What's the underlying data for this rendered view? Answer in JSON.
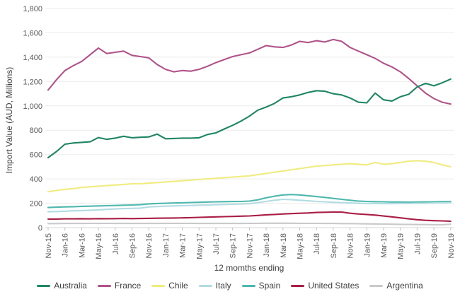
{
  "chart_data": {
    "type": "line",
    "title": "",
    "xlabel": "12 momths ending",
    "ylabel": "Import Value (AUD, Millions)",
    "ylim": [
      0,
      1800
    ],
    "ytick_step": 200,
    "grid": "horizontal",
    "legend_position": "bottom",
    "y_ticklabels": [
      "0",
      "200",
      "400",
      "600",
      "800",
      "1,000",
      "1,200",
      "1,400",
      "1,600",
      "1,800"
    ],
    "x": [
      "Nov-15",
      "Dec-15",
      "Jan-16",
      "Feb-16",
      "Mar-16",
      "Apr-16",
      "May-16",
      "Jun-16",
      "Jul-16",
      "Aug-16",
      "Sep-16",
      "Oct-16",
      "Nov-16",
      "Dec-16",
      "Jan-17",
      "Feb-17",
      "Mar-17",
      "Apr-17",
      "May-17",
      "Jun-17",
      "Jul-17",
      "Aug-17",
      "Sep-17",
      "Oct-17",
      "Nov-17",
      "Dec-17",
      "Jan-18",
      "Feb-18",
      "Mar-18",
      "Apr-18",
      "May-18",
      "Jun-18",
      "Jul-18",
      "Aug-18",
      "Sep-18",
      "Oct-18",
      "Nov-18",
      "Dec-18",
      "Jan-19",
      "Feb-19",
      "Mar-19",
      "Apr-19",
      "May-19",
      "Jun-19",
      "Jul-19",
      "Aug-19",
      "Sep-19",
      "Oct-19",
      "Nov-19"
    ],
    "x_ticklabels": [
      "Nov-15",
      "Jan-16",
      "Mar-16",
      "May-16",
      "Jul-16",
      "Sep-16",
      "Nov-16",
      "Jan-17",
      "Mar-17",
      "May-17",
      "Jul-17",
      "Sep-17",
      "Nov-17",
      "Jan-18",
      "Mar-18",
      "May-18",
      "Jul-18",
      "Sep-18",
      "Nov-18",
      "Jan-19",
      "Mar-19",
      "May-19",
      "Jul-19",
      "Sep-19",
      "Nov-19"
    ],
    "series": [
      {
        "name": "Australia",
        "color": "#1e8565",
        "values": [
          575,
          625,
          685,
          695,
          700,
          705,
          740,
          725,
          735,
          750,
          738,
          742,
          745,
          768,
          730,
          732,
          735,
          735,
          738,
          765,
          778,
          810,
          840,
          875,
          915,
          965,
          990,
          1020,
          1065,
          1075,
          1090,
          1110,
          1125,
          1120,
          1100,
          1090,
          1065,
          1030,
          1025,
          1105,
          1050,
          1040,
          1075,
          1095,
          1155,
          1185,
          1165,
          1190,
          1220
        ]
      },
      {
        "name": "France",
        "color": "#b1538a",
        "values": [
          1130,
          1215,
          1290,
          1330,
          1365,
          1420,
          1475,
          1430,
          1440,
          1450,
          1415,
          1405,
          1395,
          1340,
          1300,
          1280,
          1290,
          1285,
          1300,
          1325,
          1355,
          1380,
          1405,
          1420,
          1435,
          1465,
          1495,
          1485,
          1480,
          1500,
          1530,
          1520,
          1535,
          1525,
          1545,
          1530,
          1480,
          1450,
          1420,
          1390,
          1350,
          1320,
          1280,
          1225,
          1165,
          1105,
          1060,
          1030,
          1015
        ]
      },
      {
        "name": "Chile",
        "color": "#f0ec80",
        "values": [
          295,
          305,
          315,
          320,
          330,
          335,
          340,
          345,
          350,
          355,
          360,
          360,
          365,
          370,
          375,
          380,
          385,
          390,
          395,
          400,
          405,
          410,
          415,
          420,
          425,
          435,
          445,
          455,
          465,
          475,
          485,
          495,
          505,
          510,
          515,
          520,
          525,
          520,
          515,
          535,
          520,
          525,
          535,
          545,
          550,
          545,
          535,
          515,
          500
        ]
      },
      {
        "name": "Italy",
        "color": "#b3dce2",
        "values": [
          130,
          132,
          135,
          138,
          140,
          143,
          146,
          150,
          153,
          156,
          158,
          160,
          170,
          173,
          176,
          178,
          180,
          182,
          184,
          186,
          188,
          190,
          192,
          194,
          196,
          205,
          215,
          225,
          232,
          230,
          225,
          220,
          215,
          212,
          208,
          205,
          202,
          200,
          198,
          198,
          197,
          197,
          198,
          198,
          199,
          200,
          202,
          203,
          205
        ]
      },
      {
        "name": "Spain",
        "color": "#4fb8ae",
        "values": [
          165,
          168,
          170,
          172,
          175,
          176,
          178,
          180,
          182,
          184,
          186,
          188,
          195,
          198,
          200,
          202,
          204,
          206,
          208,
          210,
          212,
          213,
          214,
          215,
          218,
          228,
          245,
          258,
          268,
          272,
          268,
          262,
          255,
          248,
          240,
          232,
          225,
          218,
          215,
          213,
          212,
          210,
          210,
          209,
          210,
          211,
          212,
          213,
          215
        ]
      },
      {
        "name": "United States",
        "color": "#a91e45",
        "values": [
          70,
          70,
          72,
          72,
          73,
          72,
          74,
          73,
          74,
          75,
          74,
          75,
          76,
          77,
          78,
          79,
          80,
          82,
          84,
          86,
          88,
          90,
          92,
          94,
          96,
          100,
          105,
          108,
          112,
          115,
          118,
          120,
          124,
          126,
          128,
          128,
          118,
          112,
          108,
          103,
          95,
          88,
          80,
          72,
          65,
          60,
          57,
          55,
          52
        ]
      },
      {
        "name": "Argentina",
        "color": "#c9c9c9",
        "values": [
          33,
          33,
          34,
          34,
          34,
          35,
          35,
          35,
          34,
          34,
          34,
          34,
          34,
          34,
          35,
          35,
          35,
          35,
          34,
          34,
          34,
          34,
          34,
          34,
          35,
          35,
          36,
          36,
          36,
          36,
          35,
          35,
          35,
          34,
          34,
          33,
          33,
          32,
          31,
          30,
          29,
          28,
          27,
          26,
          25,
          25,
          24,
          24,
          28
        ]
      }
    ]
  }
}
